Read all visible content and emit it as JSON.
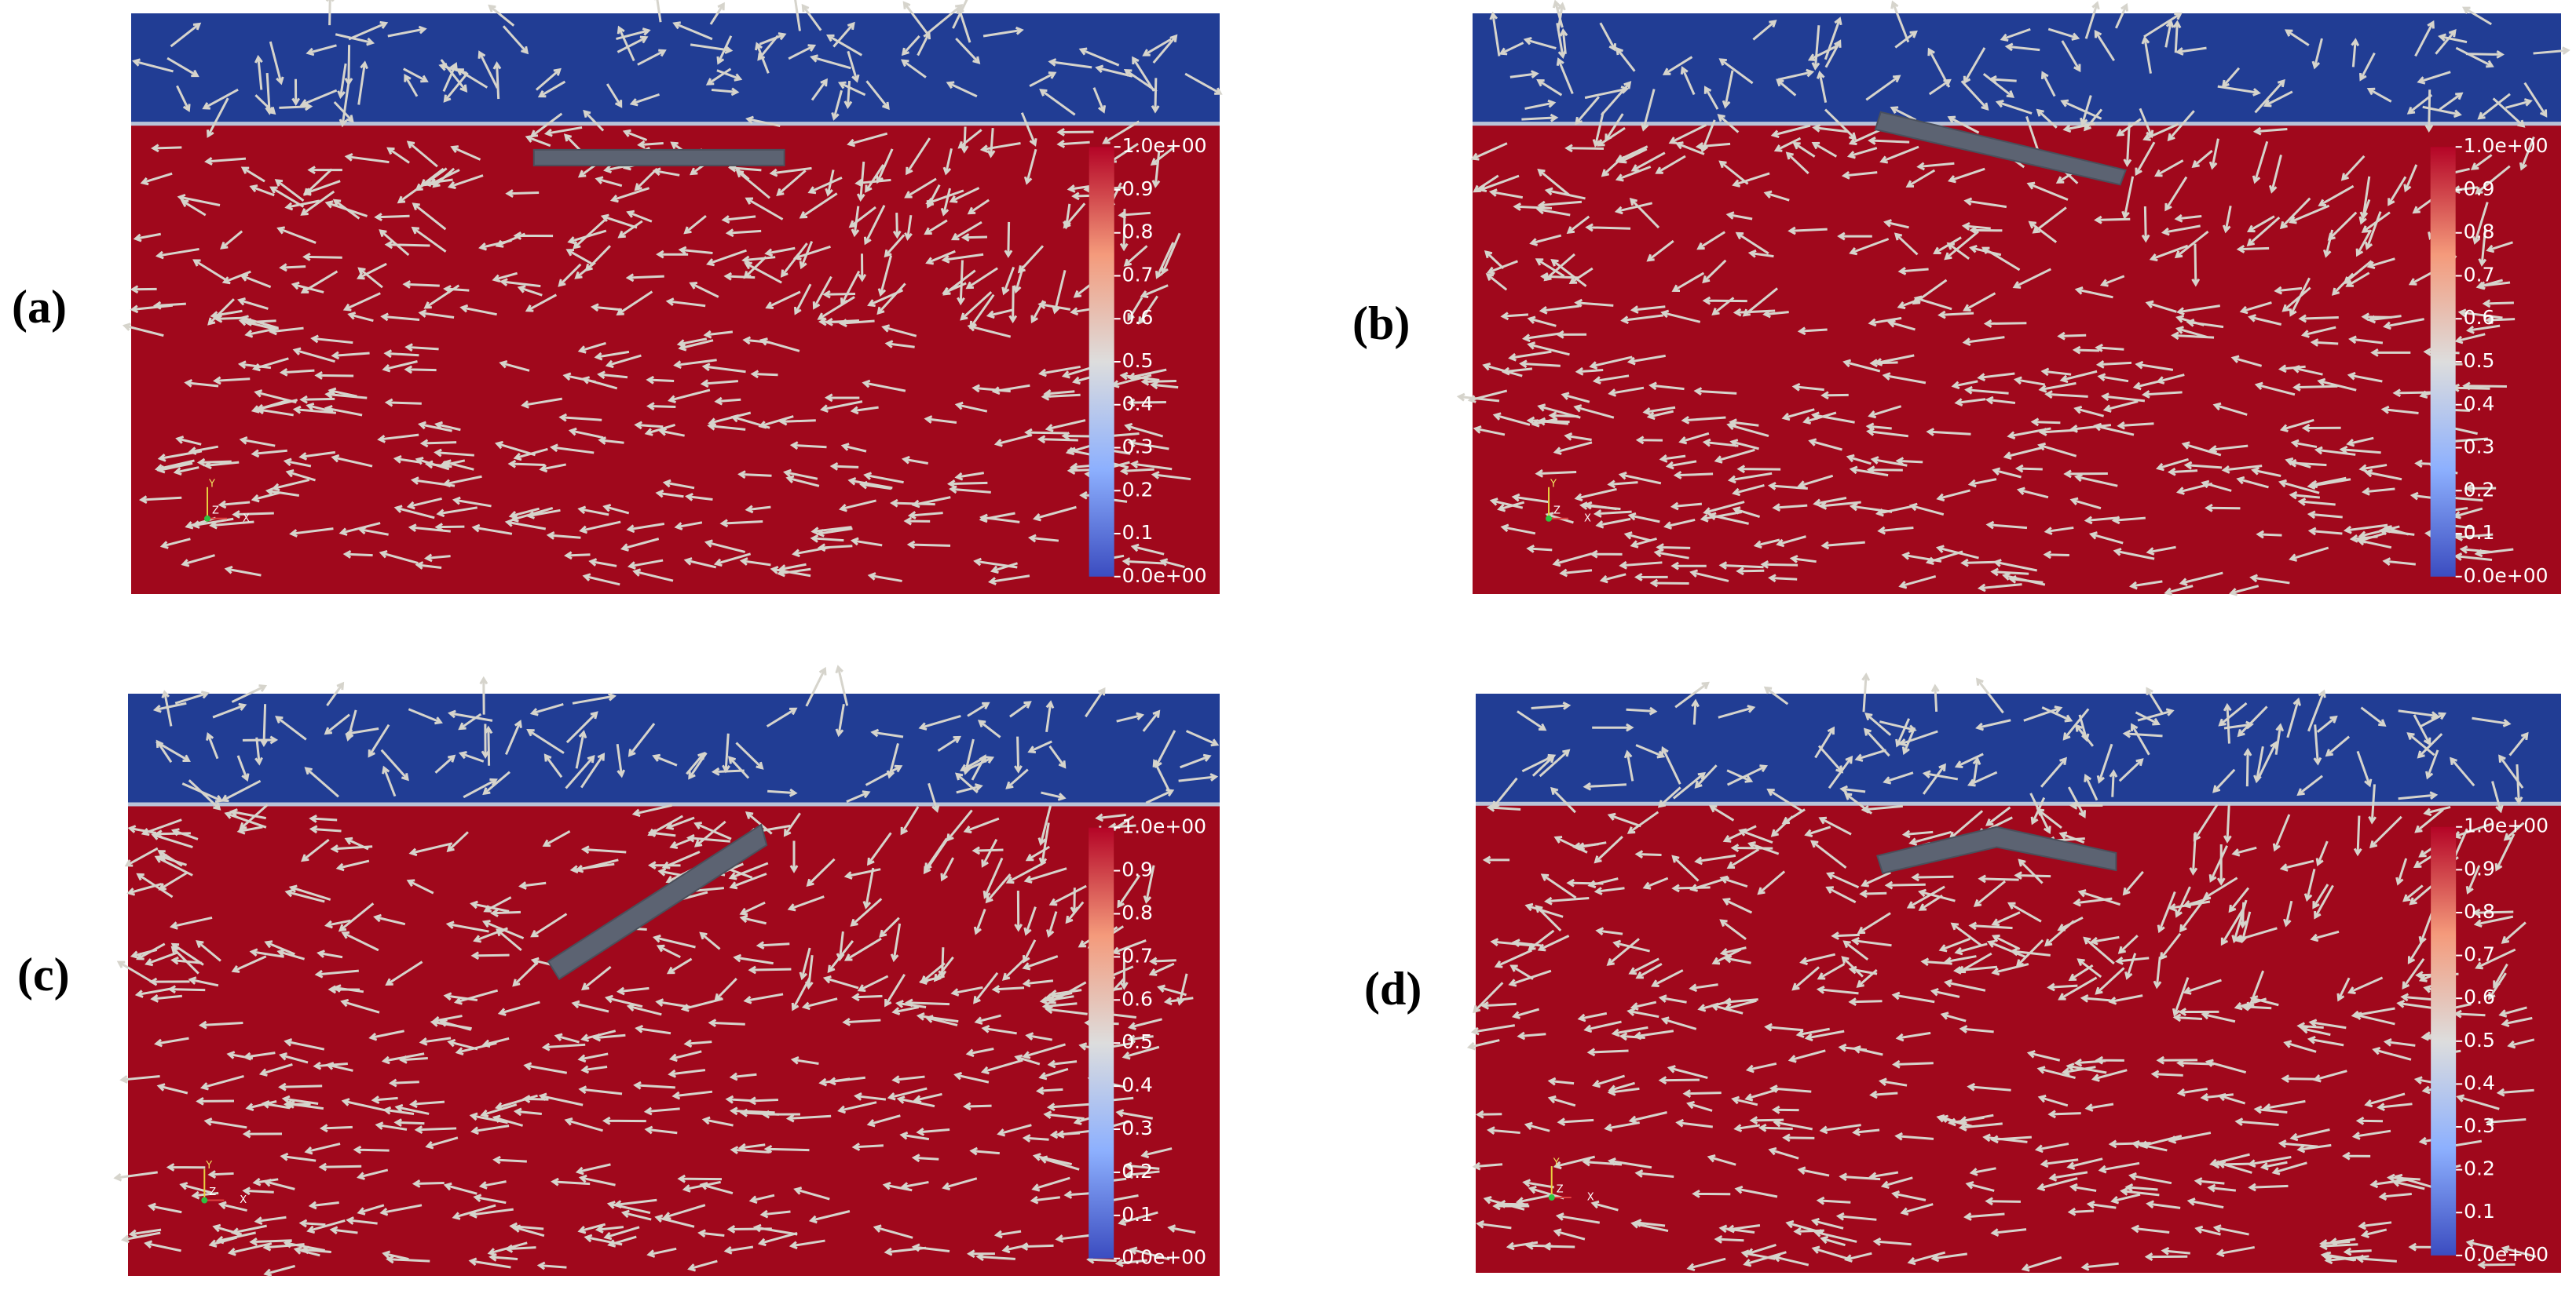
{
  "panels": [
    {
      "label": "(a)",
      "colorbar": {
        "ticks": [
          "1.0e+00",
          "0.9",
          "0.8",
          "0.7",
          "0.6",
          "0.5",
          "0.4",
          "0.3",
          "0.2",
          "0.1",
          "0.0e+00"
        ]
      },
      "axes": {
        "y": "Y",
        "z": "Z",
        "x": "X"
      }
    },
    {
      "label": "(b)",
      "colorbar": {
        "ticks": [
          "1.0e+00",
          "0.9",
          "0.8",
          "0.7",
          "0.6",
          "0.5",
          "0.4",
          "0.3",
          "0.2",
          "0.1",
          "0.0e+00"
        ]
      },
      "axes": {
        "y": "Y",
        "z": "Z",
        "x": "X"
      }
    },
    {
      "label": "(c)",
      "colorbar": {
        "ticks": [
          "1.0e+00",
          "0.9",
          "0.8",
          "0.7",
          "0.6",
          "0.5",
          "0.4",
          "0.3",
          "0.2",
          "0.1",
          "0.0e+00"
        ]
      },
      "axes": {
        "y": "Y",
        "z": "Z",
        "x": "X"
      }
    },
    {
      "label": "(d)",
      "colorbar": {
        "ticks": [
          "1.0e+00",
          "0.9",
          "0.8",
          "0.7",
          "0.6",
          "0.5",
          "0.4",
          "0.3",
          "0.2",
          "0.1",
          "0.0e+00"
        ]
      },
      "axes": {
        "y": "Y",
        "z": "Z",
        "x": "X"
      }
    }
  ]
}
